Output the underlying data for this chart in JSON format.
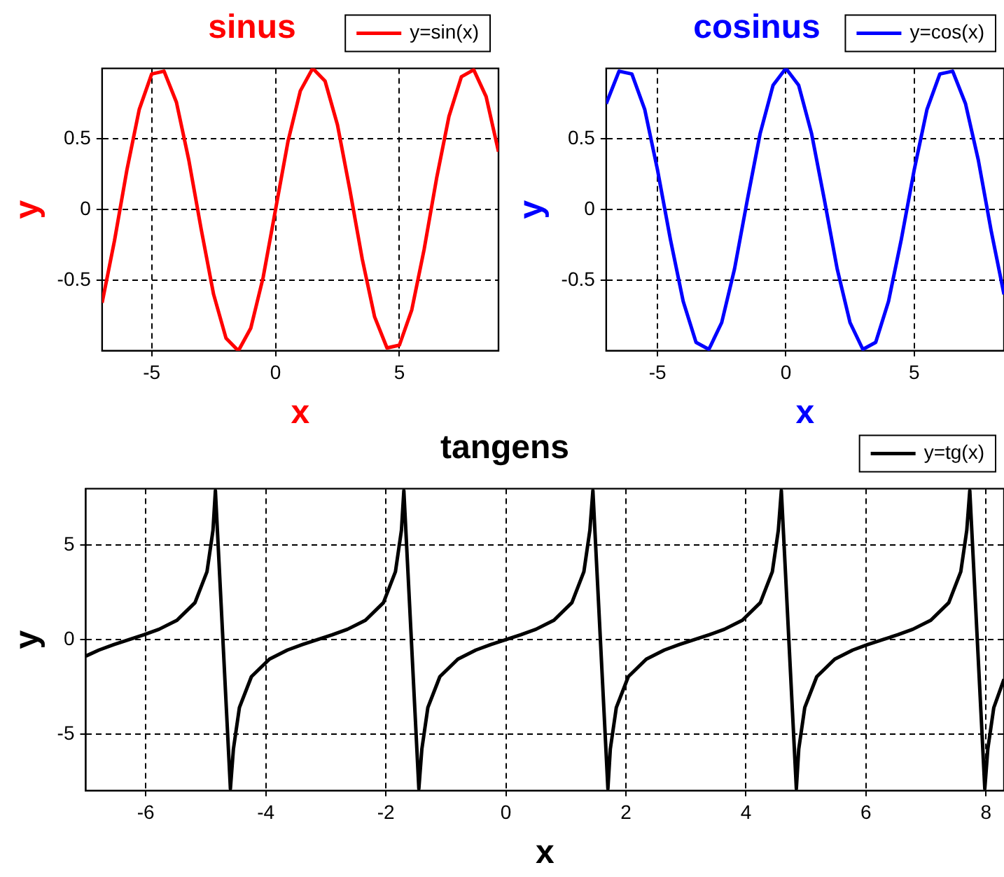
{
  "chart_data": [
    {
      "type": "line",
      "title": "sinus",
      "xlabel": "x",
      "ylabel": "y",
      "x": [
        -7,
        -6.5,
        -6,
        -5.5,
        -5,
        -4.5,
        -4,
        -3.5,
        -3,
        -2.5,
        -2,
        -1.5,
        -1,
        -0.5,
        0,
        0.5,
        1,
        1.5,
        2,
        2.5,
        3,
        3.5,
        4,
        4.5,
        5,
        5.5,
        6,
        6.5,
        7,
        7.5,
        8,
        8.5,
        9
      ],
      "series": [
        {
          "name": "y=sin(x)",
          "color": "#ff0000",
          "values": [
            -0.66,
            -0.22,
            0.28,
            0.71,
            0.96,
            0.98,
            0.76,
            0.35,
            -0.14,
            -0.6,
            -0.91,
            -1,
            -0.84,
            -0.48,
            0,
            0.48,
            0.84,
            1,
            0.91,
            0.6,
            0.14,
            -0.35,
            -0.76,
            -0.98,
            -0.96,
            -0.71,
            -0.28,
            0.22,
            0.66,
            0.94,
            0.99,
            0.8,
            0.41
          ]
        }
      ],
      "xlim": [
        -7,
        9
      ],
      "ylim": [
        -1,
        1
      ],
      "xticks": [
        -5,
        0,
        5
      ],
      "yticks": [
        -0.5,
        0,
        0.5
      ],
      "grid": true,
      "legend": "top right",
      "marker": "none",
      "line_style": "solid"
    },
    {
      "type": "line",
      "title": "cosinus",
      "xlabel": "x",
      "ylabel": "y",
      "x": [
        -7,
        -6.5,
        -6,
        -5.5,
        -5,
        -4.5,
        -4,
        -3.5,
        -3,
        -2.5,
        -2,
        -1.5,
        -1,
        -0.5,
        0,
        0.5,
        1,
        1.5,
        2,
        2.5,
        3,
        3.5,
        4,
        4.5,
        5,
        5.5,
        6,
        6.5,
        7,
        7.5,
        8,
        8.5
      ],
      "series": [
        {
          "name": "y=cos(x)",
          "color": "#0000ff",
          "values": [
            0.75,
            0.98,
            0.96,
            0.71,
            0.28,
            -0.21,
            -0.65,
            -0.94,
            -0.99,
            -0.8,
            -0.42,
            0.07,
            0.54,
            0.88,
            1,
            0.88,
            0.54,
            0.07,
            -0.42,
            -0.8,
            -0.99,
            -0.94,
            -0.65,
            -0.21,
            0.28,
            0.71,
            0.96,
            0.98,
            0.75,
            0.35,
            -0.15,
            -0.6
          ]
        }
      ],
      "xlim": [
        -7,
        8.5
      ],
      "ylim": [
        -1,
        1
      ],
      "xticks": [
        -5,
        0,
        5
      ],
      "yticks": [
        -0.5,
        0,
        0.5
      ],
      "grid": true,
      "legend": "top right",
      "marker": "none",
      "line_style": "solid"
    },
    {
      "type": "line",
      "title": "tangens",
      "xlabel": "x",
      "ylabel": "y",
      "x": [
        -7,
        -6.78,
        -6.53,
        -6.28,
        -6.03,
        -5.78,
        -5.48,
        -5.18,
        -4.98,
        -4.88,
        -4.84,
        -4.59,
        -4.54,
        -4.44,
        -4.24,
        -3.94,
        -3.64,
        -3.39,
        -3.14,
        -2.89,
        -2.64,
        -2.34,
        -2.04,
        -1.84,
        -1.74,
        -1.7,
        -1.45,
        -1.4,
        -1.3,
        -1.1,
        -0.8,
        -0.5,
        -0.25,
        0,
        0.25,
        0.5,
        0.8,
        1.1,
        1.3,
        1.4,
        1.45,
        1.7,
        1.74,
        1.84,
        2.04,
        2.34,
        2.64,
        2.89,
        3.14,
        3.39,
        3.64,
        3.94,
        4.24,
        4.44,
        4.54,
        4.59,
        4.84,
        4.88,
        4.98,
        5.18,
        5.48,
        5.78,
        6.03,
        6.28,
        6.53,
        6.78,
        7.08,
        7.38,
        7.58,
        7.68,
        7.73,
        7.98,
        8.03,
        8.13,
        8.3
      ],
      "series": [
        {
          "name": "y=tg(x)",
          "color": "#000000",
          "values": [
            -0.87,
            -0.55,
            -0.26,
            0,
            0.26,
            0.55,
            1.03,
            1.96,
            3.6,
            5.8,
            7.9,
            -7.9,
            -5.8,
            -3.6,
            -1.96,
            -1.03,
            -0.55,
            -0.26,
            0,
            0.26,
            0.55,
            1.03,
            1.96,
            3.6,
            5.8,
            7.9,
            -7.9,
            -5.8,
            -3.6,
            -1.96,
            -1.03,
            -0.55,
            -0.26,
            0,
            0.26,
            0.55,
            1.03,
            1.96,
            3.6,
            5.8,
            7.9,
            -7.9,
            -5.8,
            -3.6,
            -1.96,
            -1.03,
            -0.55,
            -0.26,
            0,
            0.26,
            0.55,
            1.03,
            1.96,
            3.6,
            5.8,
            7.9,
            -7.9,
            -5.8,
            -3.6,
            -1.96,
            -1.03,
            -0.55,
            -0.26,
            0,
            0.26,
            0.55,
            1.03,
            1.96,
            3.6,
            5.8,
            7.9,
            -7.9,
            -5.8,
            -3.6,
            -2.09
          ]
        }
      ],
      "xlim": [
        -7,
        8.3
      ],
      "ylim": [
        -8,
        8
      ],
      "xticks": [
        -6,
        -4,
        -2,
        0,
        2,
        4,
        6,
        8
      ],
      "yticks": [
        -5,
        0,
        5
      ],
      "grid": true,
      "legend": "top right",
      "marker": "none",
      "line_style": "solid"
    }
  ]
}
